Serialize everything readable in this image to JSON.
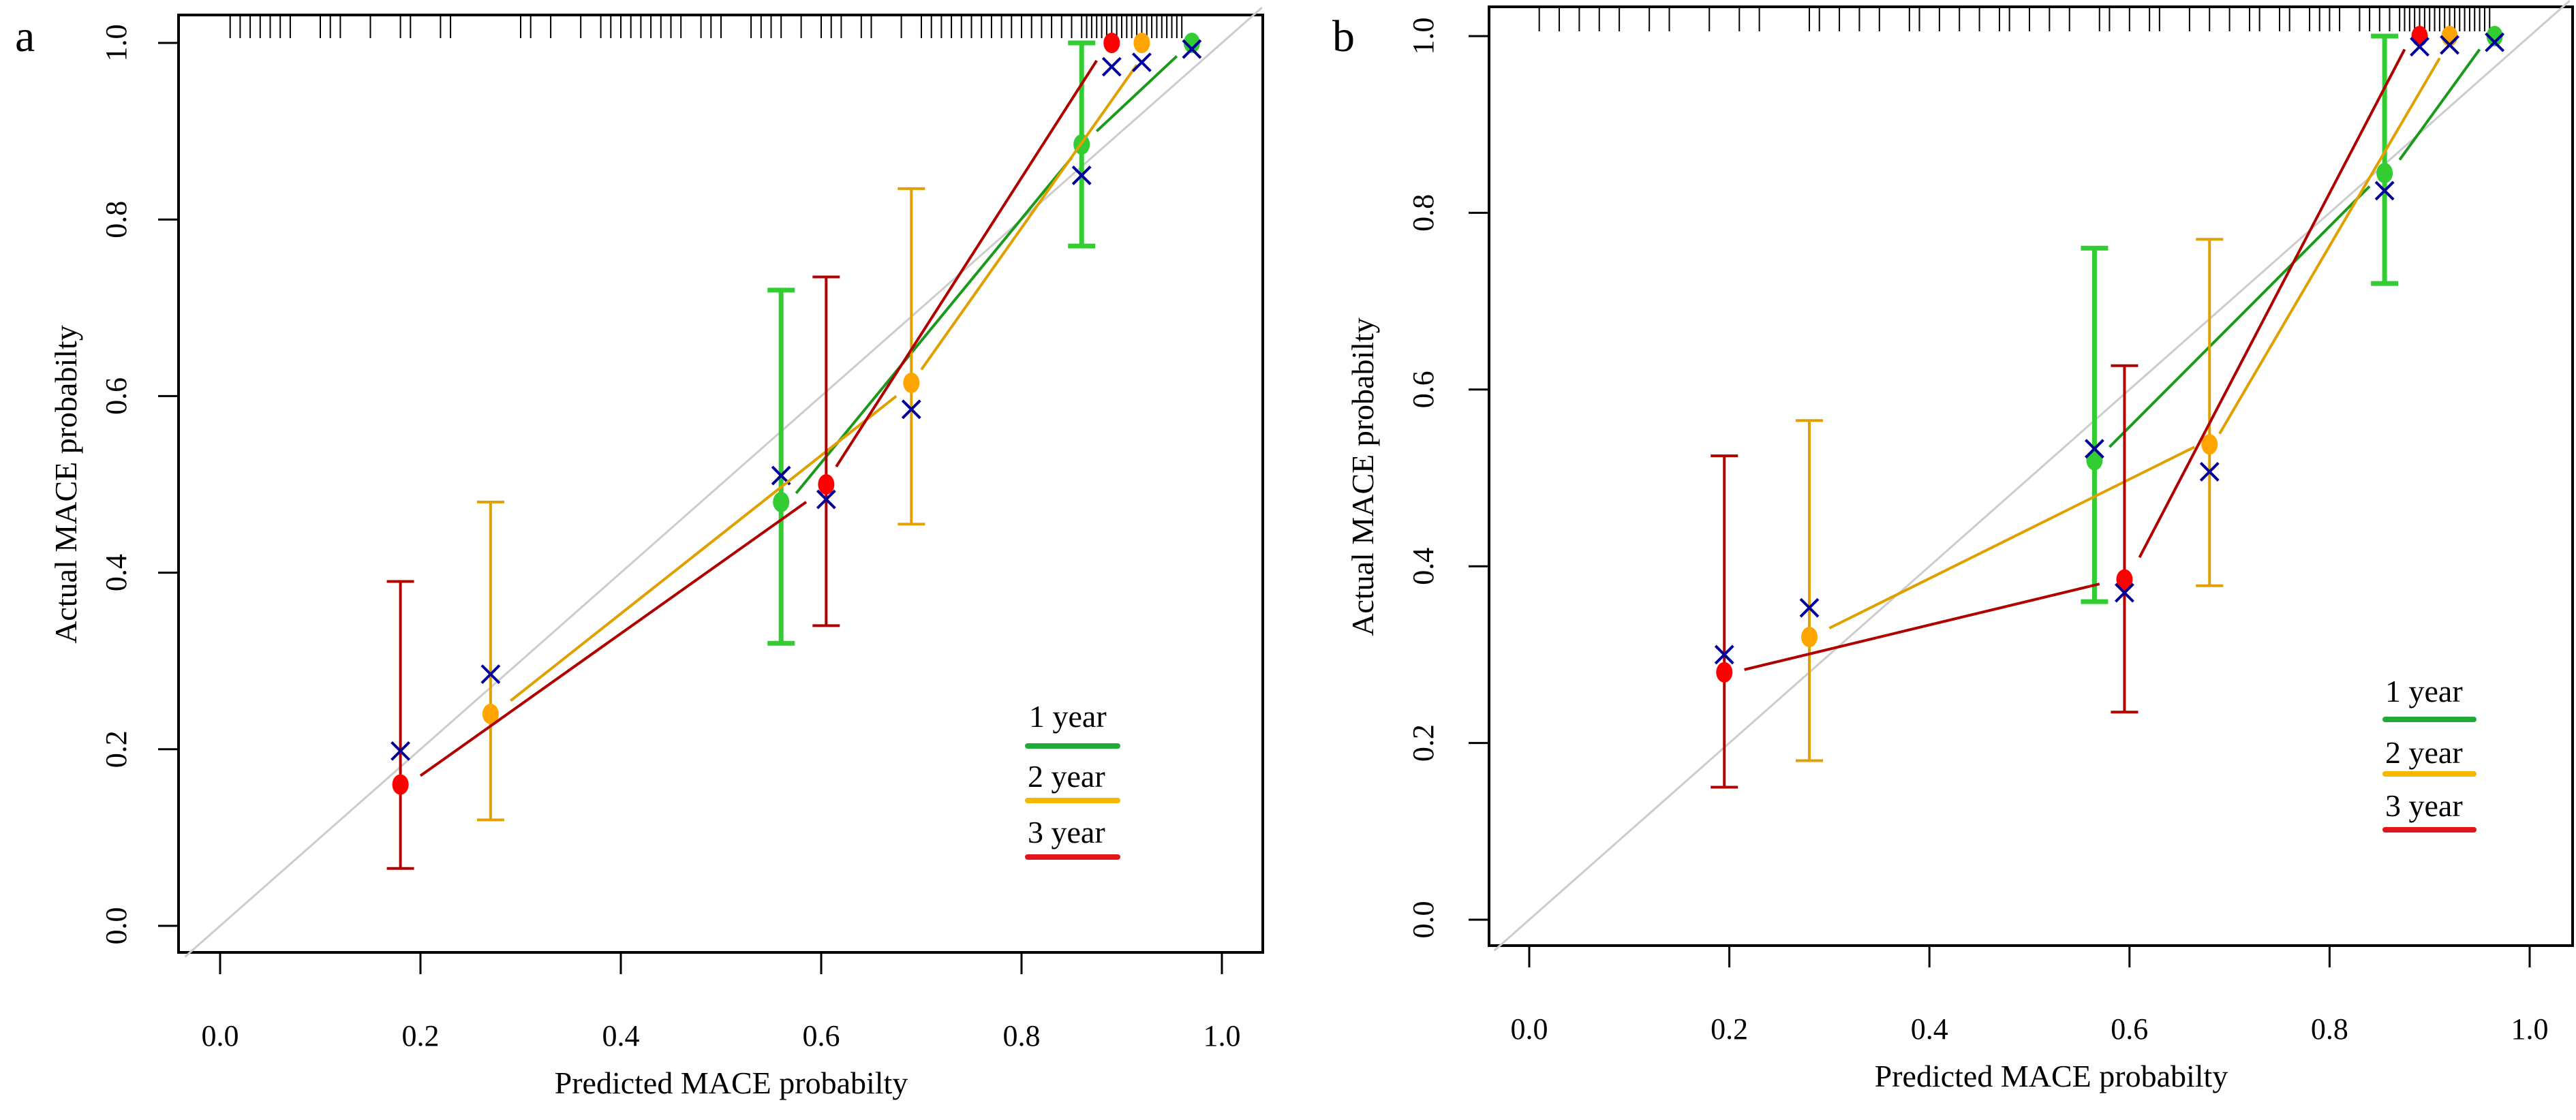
{
  "figure": {
    "panels": [
      "a",
      "b"
    ]
  },
  "legend": {
    "entries": [
      {
        "label": "1 year",
        "color": "#1faa3a"
      },
      {
        "label": "2 year",
        "color": "#f5b800"
      },
      {
        "label": "3 year",
        "color": "#e3131b"
      }
    ]
  },
  "colors": {
    "one_year_point": "#33cc33",
    "one_year_line": "#1a9a1a",
    "two_year_point": "#ffa500",
    "two_year_line": "#e0a000",
    "three_year_point": "#ff0000",
    "three_year_line": "#b00000",
    "bias_corrected_marker": "#000099",
    "ideal_line": "#cccccc"
  },
  "chart_data": [
    {
      "panel": "a",
      "type": "scatter",
      "title": "",
      "xlabel": "Predicted MACE probabilty",
      "ylabel": "Actual MACE probabilty",
      "xlim": [
        0,
        1
      ],
      "ylim": [
        0,
        1
      ],
      "xticks": [
        "0.0",
        "0.2",
        "0.4",
        "0.6",
        "0.8",
        "1.0"
      ],
      "yticks": [
        "0.0",
        "0.2",
        "0.4",
        "0.6",
        "0.8",
        "1.0"
      ],
      "legend_position": "bottom-right",
      "reference_line": "ideal diagonal y = x",
      "rug": "predicted probability rug along top axis",
      "series": [
        {
          "name": "1 year",
          "points": [
            {
              "x": 0.56,
              "y": 0.48,
              "ci": [
                0.32,
                0.72
              ],
              "bias_corrected": 0.51
            },
            {
              "x": 0.86,
              "y": 0.885,
              "ci": [
                0.77,
                1.0
              ],
              "bias_corrected": 0.85
            },
            {
              "x": 0.97,
              "y": 1.0,
              "ci": null,
              "bias_corrected": 0.993
            }
          ],
          "bias_corrected_segments": [
            [
              [
                0.575,
                0.49
              ],
              [
                0.85,
                0.87
              ]
            ],
            [
              [
                0.875,
                0.9
              ],
              [
                0.955,
                0.985
              ]
            ]
          ]
        },
        {
          "name": "2 year",
          "points": [
            {
              "x": 0.27,
              "y": 0.24,
              "ci": [
                0.12,
                0.48
              ],
              "bias_corrected": 0.285
            },
            {
              "x": 0.69,
              "y": 0.615,
              "ci": [
                0.455,
                0.835
              ],
              "bias_corrected": 0.585
            },
            {
              "x": 0.92,
              "y": 1.0,
              "ci": null,
              "bias_corrected": 0.978
            }
          ],
          "bias_corrected_segments": [
            [
              [
                0.29,
                0.255
              ],
              [
                0.675,
                0.6
              ]
            ],
            [
              [
                0.7,
                0.63
              ],
              [
                0.915,
                0.975
              ]
            ]
          ]
        },
        {
          "name": "3 year",
          "points": [
            {
              "x": 0.18,
              "y": 0.16,
              "ci": [
                0.065,
                0.39
              ],
              "bias_corrected": 0.198
            },
            {
              "x": 0.605,
              "y": 0.5,
              "ci": [
                0.34,
                0.735
              ],
              "bias_corrected": 0.483
            },
            {
              "x": 0.89,
              "y": 1.0,
              "ci": null,
              "bias_corrected": 0.973
            }
          ],
          "bias_corrected_segments": [
            [
              [
                0.2,
                0.17
              ],
              [
                0.585,
                0.48
              ]
            ],
            [
              [
                0.615,
                0.52
              ],
              [
                0.875,
                0.98
              ]
            ]
          ]
        }
      ]
    },
    {
      "panel": "b",
      "type": "scatter",
      "title": "",
      "xlabel": "Predicted MACE probabilty",
      "ylabel": "Actual MACE probabilty",
      "xlim": [
        0,
        1
      ],
      "ylim": [
        0,
        1
      ],
      "xticks": [
        "0.0",
        "0.2",
        "0.4",
        "0.6",
        "0.8",
        "1.0"
      ],
      "yticks": [
        "0.0",
        "0.2",
        "0.4",
        "0.6",
        "0.8",
        "1.0"
      ],
      "legend_position": "bottom-right",
      "reference_line": "ideal diagonal y = x",
      "rug": "predicted probability rug along top axis",
      "series": [
        {
          "name": "1 year",
          "points": [
            {
              "x": 0.565,
              "y": 0.52,
              "ci": [
                0.36,
                0.76
              ],
              "bias_corrected": 0.533
            },
            {
              "x": 0.855,
              "y": 0.845,
              "ci": [
                0.72,
                1.0
              ],
              "bias_corrected": 0.825
            },
            {
              "x": 0.965,
              "y": 1.0,
              "ci": null,
              "bias_corrected": 0.993
            }
          ],
          "bias_corrected_segments": [
            [
              [
                0.58,
                0.535
              ],
              [
                0.84,
                0.83
              ]
            ],
            [
              [
                0.87,
                0.86
              ],
              [
                0.95,
                0.985
              ]
            ]
          ]
        },
        {
          "name": "2 year",
          "points": [
            {
              "x": 0.28,
              "y": 0.32,
              "ci": [
                0.18,
                0.565
              ],
              "bias_corrected": 0.353
            },
            {
              "x": 0.68,
              "y": 0.538,
              "ci": [
                0.378,
                0.77
              ],
              "bias_corrected": 0.507
            },
            {
              "x": 0.92,
              "y": 1.0,
              "ci": null,
              "bias_corrected": 0.99
            }
          ],
          "bias_corrected_segments": [
            [
              [
                0.3,
                0.33
              ],
              [
                0.665,
                0.535
              ]
            ],
            [
              [
                0.69,
                0.55
              ],
              [
                0.91,
                0.975
              ]
            ]
          ]
        },
        {
          "name": "3 year",
          "points": [
            {
              "x": 0.195,
              "y": 0.28,
              "ci": [
                0.15,
                0.525
              ],
              "bias_corrected": 0.3
            },
            {
              "x": 0.595,
              "y": 0.385,
              "ci": [
                0.235,
                0.627
              ],
              "bias_corrected": 0.37
            },
            {
              "x": 0.89,
              "y": 1.0,
              "ci": null,
              "bias_corrected": 0.988
            }
          ],
          "bias_corrected_segments": [
            [
              [
                0.215,
                0.283
              ],
              [
                0.57,
                0.38
              ]
            ],
            [
              [
                0.61,
                0.41
              ],
              [
                0.875,
                0.985
              ]
            ]
          ]
        }
      ]
    }
  ],
  "rug": {
    "a": [
      0.01,
      0.02,
      0.03,
      0.04,
      0.05,
      0.06,
      0.07,
      0.1,
      0.11,
      0.12,
      0.15,
      0.18,
      0.19,
      0.22,
      0.23,
      0.3,
      0.31,
      0.33,
      0.36,
      0.38,
      0.39,
      0.4,
      0.41,
      0.42,
      0.43,
      0.44,
      0.45,
      0.46,
      0.48,
      0.49,
      0.5,
      0.53,
      0.54,
      0.55,
      0.56,
      0.58,
      0.6,
      0.61,
      0.62,
      0.64,
      0.65,
      0.68,
      0.7,
      0.71,
      0.72,
      0.73,
      0.74,
      0.75,
      0.76,
      0.77,
      0.78,
      0.79,
      0.8,
      0.81,
      0.82,
      0.83,
      0.84,
      0.85,
      0.86,
      0.865,
      0.87,
      0.875,
      0.88,
      0.885,
      0.89,
      0.895,
      0.9,
      0.905,
      0.91,
      0.915,
      0.92,
      0.925,
      0.93,
      0.935,
      0.94,
      0.945,
      0.95,
      0.955,
      0.96
    ],
    "b": [
      0.01,
      0.03,
      0.05,
      0.07,
      0.09,
      0.12,
      0.14,
      0.18,
      0.21,
      0.23,
      0.28,
      0.29,
      0.31,
      0.33,
      0.35,
      0.38,
      0.39,
      0.41,
      0.43,
      0.45,
      0.47,
      0.48,
      0.5,
      0.52,
      0.54,
      0.57,
      0.58,
      0.6,
      0.62,
      0.63,
      0.66,
      0.68,
      0.7,
      0.72,
      0.73,
      0.75,
      0.76,
      0.78,
      0.79,
      0.8,
      0.81,
      0.83,
      0.84,
      0.85,
      0.86,
      0.87,
      0.875,
      0.88,
      0.885,
      0.89,
      0.895,
      0.9,
      0.905,
      0.91,
      0.915,
      0.92,
      0.925,
      0.93,
      0.935,
      0.94,
      0.945,
      0.95,
      0.955,
      0.96
    ]
  }
}
